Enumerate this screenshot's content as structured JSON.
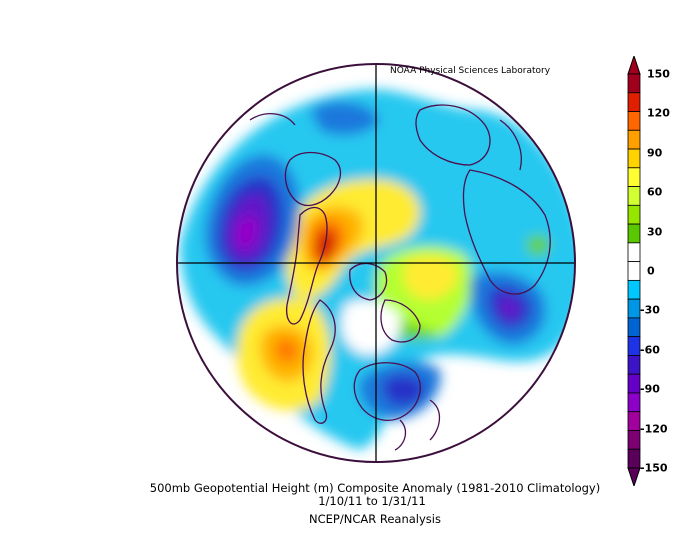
{
  "credit": "NOAA Physical Sciences Laboratory",
  "title": {
    "line1": "500mb Geopotential Height (m) Composite Anomaly (1981-2010 Climatology)",
    "line2": "1/10/11   to 1/31/11",
    "line3": "NCEP/NCAR Reanalysis"
  },
  "colorbar": {
    "labels": [
      "150",
      "120",
      "90",
      "60",
      "30",
      "0",
      "-30",
      "-60",
      "-90",
      "-120",
      "-150"
    ],
    "colors": [
      "#a0001e",
      "#e01e00",
      "#ff6600",
      "#ffa000",
      "#ffd200",
      "#ffff32",
      "#d2ff32",
      "#96e600",
      "#5ac800",
      "#ffffff",
      "#ffffff",
      "#00c8ff",
      "#0096e6",
      "#0064d2",
      "#1e32e6",
      "#3c14c8",
      "#6400c8",
      "#8c00c8",
      "#a0009b",
      "#7d0073",
      "#5a005a"
    ]
  },
  "map": {
    "projection": "north polar stereographic",
    "field_colors": {
      "pos_high": "#d21e00",
      "pos_orange": "#ff7800",
      "pos_amber": "#ffb400",
      "pos_yellow": "#ffeb32",
      "pos_lime": "#b4ff32",
      "pos_green": "#64d200",
      "neg_cyan": "#28c8f0",
      "neg_blue": "#1e78dc",
      "neg_dark": "#2832c8",
      "neg_violet": "#6414c8",
      "neg_purple": "#9600c8",
      "coast": "#4b0f50"
    }
  }
}
